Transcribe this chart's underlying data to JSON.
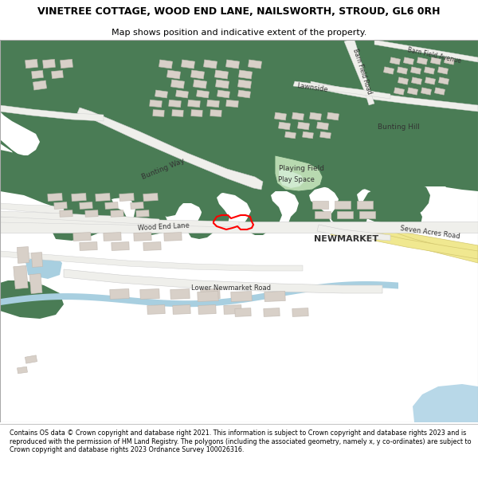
{
  "title": "VINETREE COTTAGE, WOOD END LANE, NAILSWORTH, STROUD, GL6 0RH",
  "subtitle": "Map shows position and indicative extent of the property.",
  "footer": "Contains OS data © Crown copyright and database right 2021. This information is subject to Crown copyright and database rights 2023 and is reproduced with the permission of HM Land Registry. The polygons (including the associated geometry, namely x, y co-ordinates) are subject to Crown copyright and database rights 2023 Ordnance Survey 100026316.",
  "green": "#4a7c55",
  "light_green": "#b8d9b0",
  "water": "#a8cfe0",
  "building": "#d8d0c8",
  "building_edge": "#c0b8b0",
  "road_fill": "#efefeb",
  "road_edge": "#cccccc",
  "yellow_road": "#f0e890",
  "yellow_road_edge": "#d4c870",
  "white": "#ffffff",
  "red": "#ff0000",
  "text_dark": "#333333",
  "title_fontsize": 9,
  "subtitle_fontsize": 8
}
